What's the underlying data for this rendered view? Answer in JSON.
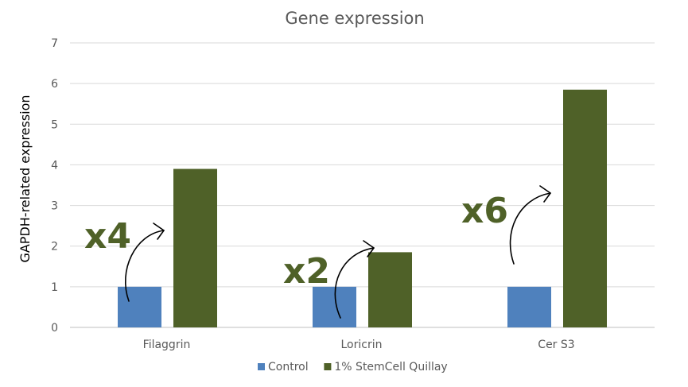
{
  "chart_data": {
    "type": "bar",
    "title": "Gene expression",
    "xlabel": "",
    "ylabel": "GAPDH-related expression",
    "ylim": [
      0,
      7
    ],
    "yticks": [
      0,
      1,
      2,
      3,
      4,
      5,
      6,
      7
    ],
    "categories": [
      "Filaggrin",
      "Loricrin",
      "Cer S3"
    ],
    "series": [
      {
        "name": "Control",
        "color": "#4F81BD",
        "values": [
          1.0,
          1.0,
          1.0
        ]
      },
      {
        "name": "1% StemCell Quillay",
        "color": "#4F6128",
        "values": [
          3.9,
          1.85,
          5.85
        ]
      }
    ],
    "annotations": [
      "x4",
      "x2",
      "x6"
    ],
    "annotation_color": "#4F6128",
    "grid": true,
    "legend_position": "bottom"
  }
}
